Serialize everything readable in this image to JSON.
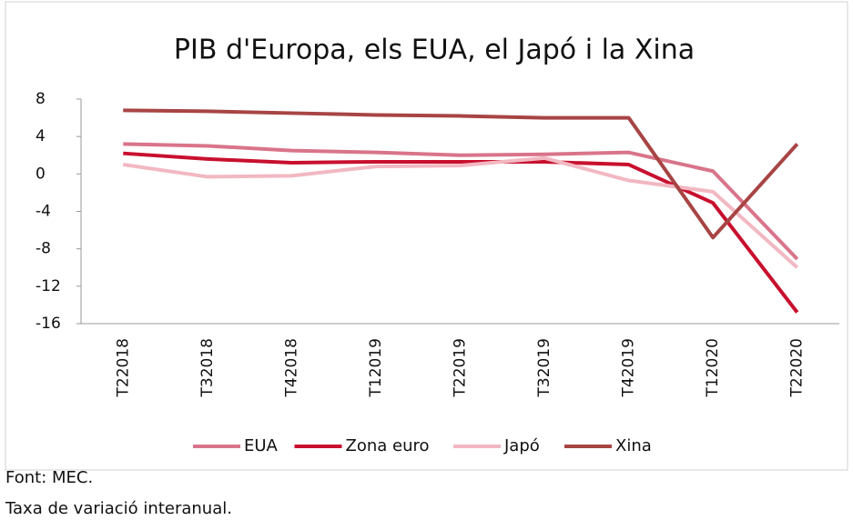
{
  "chart_data": {
    "type": "line",
    "title": "PIB d'Europa, els EUA, el Japó i la Xina",
    "categories": [
      "T22018",
      "T32018",
      "T42018",
      "T12019",
      "T22019",
      "T32019",
      "T42019",
      "T12020",
      "T22020"
    ],
    "series": [
      {
        "name": "EUA",
        "color": "#d9748a",
        "values": [
          3.2,
          3.0,
          2.5,
          2.3,
          2.0,
          2.1,
          2.3,
          0.3,
          -9.1
        ]
      },
      {
        "name": "Zona euro",
        "color": "#c8102e",
        "values": [
          2.2,
          1.6,
          1.2,
          1.3,
          1.3,
          1.3,
          1.0,
          -3.1,
          -14.8
        ]
      },
      {
        "name": "Japó",
        "color": "#f2b8c2",
        "values": [
          1.0,
          -0.3,
          -0.2,
          0.8,
          0.9,
          1.7,
          -0.7,
          -1.9,
          -10.0
        ]
      },
      {
        "name": "Xina",
        "color": "#a84444",
        "values": [
          6.8,
          6.7,
          6.5,
          6.3,
          6.2,
          6.0,
          6.0,
          -6.8,
          3.2
        ]
      }
    ],
    "ylim": [
      -16,
      8
    ],
    "yticks": [
      -16,
      -12,
      -8,
      -4,
      0,
      4,
      8
    ],
    "legend": "bottom",
    "source": "Font: MEC.",
    "note": "Taxa de variació interanual."
  }
}
